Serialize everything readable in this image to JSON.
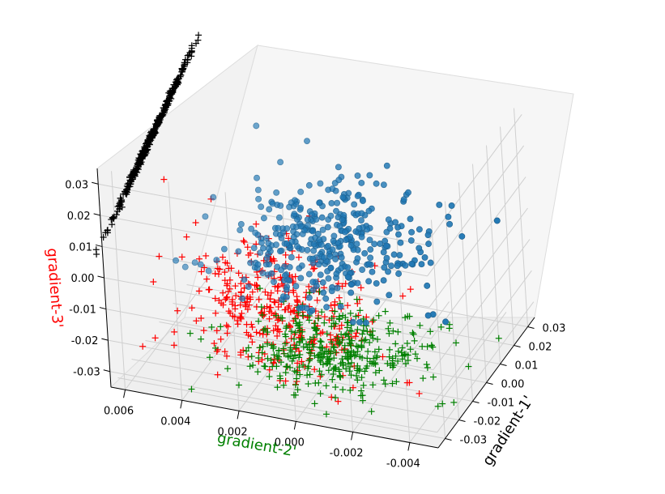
{
  "chart_data": {
    "type": "scatter",
    "projection": "3d",
    "title": "",
    "axes": {
      "x": {
        "label": "gradient-1'",
        "color": "#000000",
        "range": [
          -0.035,
          0.035
        ],
        "ticks": [
          "-0.03",
          "-0.02",
          "-0.01",
          "0.00",
          "0.01",
          "0.02",
          "0.03"
        ]
      },
      "y": {
        "label": "gradient-2'",
        "color": "#008000",
        "range": [
          -0.005,
          0.0065
        ],
        "ticks": [
          "0.006",
          "0.004",
          "0.002",
          "0.000",
          "-0.002",
          "-0.004"
        ]
      },
      "z": {
        "label": "gradient-3'",
        "color": "#ff0000",
        "range": [
          -0.035,
          0.035
        ],
        "ticks": [
          "0.03",
          "0.02",
          "0.01",
          "0.00",
          "-0.01",
          "-0.02",
          "-0.03"
        ]
      }
    },
    "grid": true,
    "series": [
      {
        "kind": "main-3d-cloud",
        "marker": "o",
        "color": "#1f77b4",
        "count": 420,
        "description_x_spread": "~±0.03",
        "description_y_spread": "~±0.004",
        "description_z_spread": "~±0.02"
      },
      {
        "kind": "projection on y-z wall (x=-0.035)",
        "marker": "+",
        "color": "#ff0000",
        "count": 420
      },
      {
        "kind": "projection on x-z wall (y=max)",
        "marker": "+",
        "color": "#000000",
        "count": 420
      },
      {
        "kind": "projection on floor (z=-0.035)",
        "marker": "+",
        "color": "#008000",
        "count": 420
      }
    ]
  }
}
